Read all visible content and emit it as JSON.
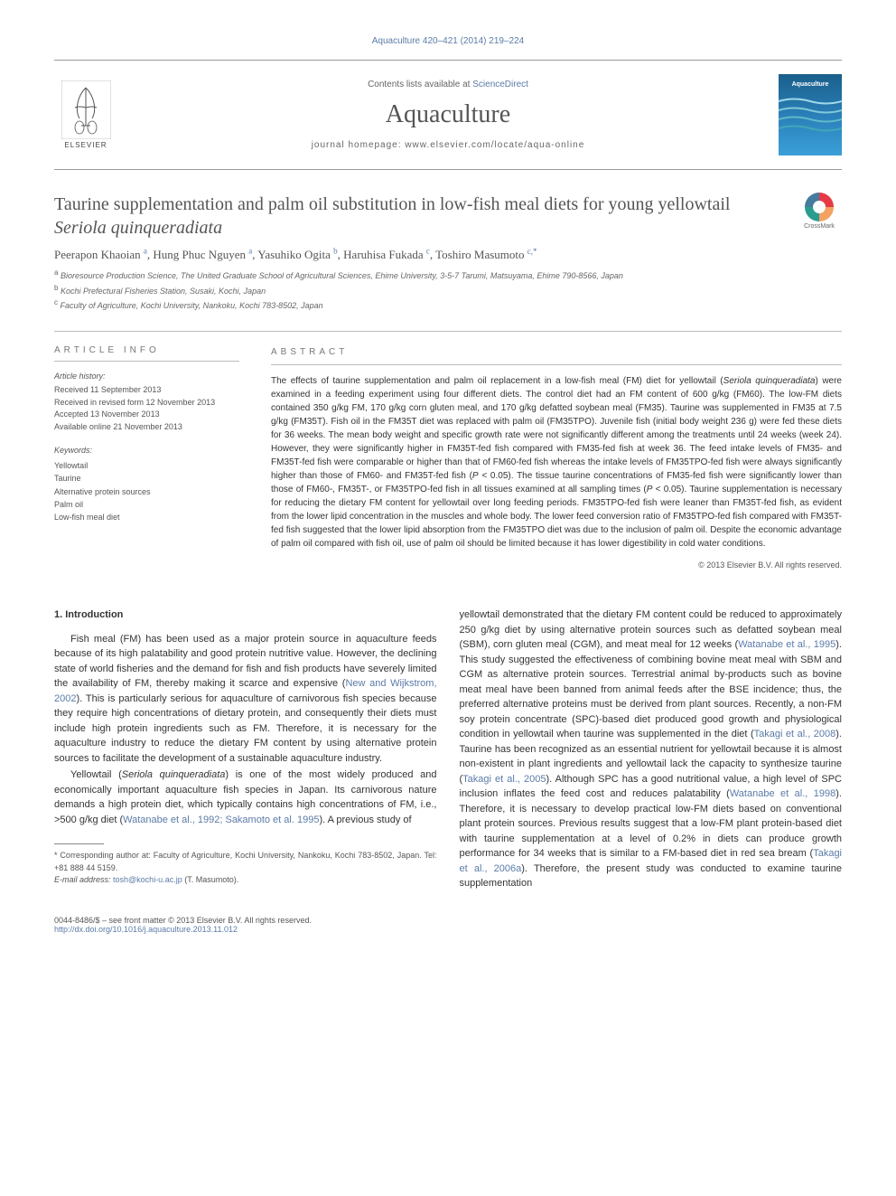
{
  "journal_ref": "Aquaculture 420–421 (2014) 219–224",
  "header": {
    "contents_prefix": "Contents lists available at ",
    "contents_link": "ScienceDirect",
    "journal_name": "Aquaculture",
    "homepage_prefix": "journal homepage: ",
    "homepage": "www.elsevier.com/locate/aqua-online",
    "publisher": "ELSEVIER",
    "cover_title": "Aquaculture"
  },
  "crossmark_label": "CrossMark",
  "title_part1": "Taurine supplementation and palm oil substitution in low-fish meal diets for young yellowtail ",
  "title_ital": "Seriola quinqueradiata",
  "authors_html": "Peerapon Khaoian <sup>a</sup>, Hung Phuc Nguyen <sup>a</sup>, Yasuhiko Ogita <sup>b</sup>, Haruhisa Fukada <sup>c</sup>, Toshiro Masumoto ",
  "author_last_sup": "c,",
  "author_corr": "*",
  "affiliations": {
    "a": "Bioresource Production Science, The United Graduate School of Agricultural Sciences, Ehime University, 3-5-7 Tarumi, Matsuyama, Ehime 790-8566, Japan",
    "b": "Kochi Prefectural Fisheries Station, Susaki, Kochi, Japan",
    "c": "Faculty of Agriculture, Kochi University, Nankoku, Kochi 783-8502, Japan"
  },
  "info": {
    "heading": "ARTICLE INFO",
    "history_label": "Article history:",
    "received": "Received 11 September 2013",
    "revised": "Received in revised form 12 November 2013",
    "accepted": "Accepted 13 November 2013",
    "online": "Available online 21 November 2013",
    "keywords_label": "Keywords:",
    "keywords": [
      "Yellowtail",
      "Taurine",
      "Alternative protein sources",
      "Palm oil",
      "Low-fish meal diet"
    ]
  },
  "abstract": {
    "heading": "ABSTRACT",
    "text_pre": "The effects of taurine supplementation and palm oil replacement in a low-fish meal (FM) diet for yellowtail (",
    "text_ital1": "Seriola quinqueradiata",
    "text_post1": ") were examined in a feeding experiment using four different diets. The control diet had an FM content of 600 g/kg (FM60). The low-FM diets contained 350 g/kg FM, 170 g/kg corn gluten meal, and 170 g/kg defatted soybean meal (FM35). Taurine was supplemented in FM35 at 7.5 g/kg (FM35T). Fish oil in the FM35T diet was replaced with palm oil (FM35TPO). Juvenile fish (initial body weight 236 g) were fed these diets for 36 weeks. The mean body weight and specific growth rate were not significantly different among the treatments until 24 weeks (week 24). However, they were significantly higher in FM35T-fed fish compared with FM35-fed fish at week 36. The feed intake levels of FM35- and FM35T-fed fish were comparable or higher than that of FM60-fed fish whereas the intake levels of FM35TPO-fed fish were always significantly higher than those of FM60- and FM35T-fed fish (",
    "text_ital2": "P",
    "text_post2": " < 0.05). The tissue taurine concentrations of FM35-fed fish were significantly lower than those of FM60-, FM35T-, or FM35TPO-fed fish in all tissues examined at all sampling times (",
    "text_ital3": "P",
    "text_post3": " < 0.05). Taurine supplementation is necessary for reducing the dietary FM content for yellowtail over long feeding periods. FM35TPO-fed fish were leaner than FM35T-fed fish, as evident from the lower lipid concentration in the muscles and whole body. The lower feed conversion ratio of FM35TPO-fed fish compared with FM35T-fed fish suggested that the lower lipid absorption from the FM35TPO diet was due to the inclusion of palm oil. Despite the economic advantage of palm oil compared with fish oil, use of palm oil should be limited because it has lower digestibility in cold water conditions.",
    "copyright": "© 2013 Elsevier B.V. All rights reserved."
  },
  "body": {
    "section_heading": "1. Introduction",
    "col1_p1_pre": "Fish meal (FM) has been used as a major protein source in aquaculture feeds because of its high palatability and good protein nutritive value. However, the declining state of world fisheries and the demand for fish and fish products have severely limited the availability of FM, thereby making it scarce and expensive (",
    "col1_p1_ref1": "New and Wijkstrom, 2002",
    "col1_p1_post": "). This is particularly serious for aquaculture of carnivorous fish species because they require high concentrations of dietary protein, and consequently their diets must include high protein ingredients such as FM. Therefore, it is necessary for the aquaculture industry to reduce the dietary FM content by using alternative protein sources to facilitate the development of a sustainable aquaculture industry.",
    "col1_p2_pre": "Yellowtail (",
    "col1_p2_ital": "Seriola quinqueradiata",
    "col1_p2_mid": ") is one of the most widely produced and economically important aquaculture fish species in Japan. Its carnivorous nature demands a high protein diet, which typically contains high concentrations of FM, i.e., >500 g/kg diet (",
    "col1_p2_ref": "Watanabe et al., 1992; Sakamoto et al. 1995",
    "col1_p2_post": "). A previous study of",
    "col2_p1_pre": "yellowtail demonstrated that the dietary FM content could be reduced to approximately 250 g/kg diet by using alternative protein sources such as defatted soybean meal (SBM), corn gluten meal (CGM), and meat meal for 12 weeks (",
    "col2_p1_ref1": "Watanabe et al., 1995",
    "col2_p1_mid1": "). This study suggested the effectiveness of combining bovine meat meal with SBM and CGM as alternative protein sources. Terrestrial animal by-products such as bovine meat meal have been banned from animal feeds after the BSE incidence; thus, the preferred alternative proteins must be derived from plant sources. Recently, a non-FM soy protein concentrate (SPC)-based diet produced good growth and physiological condition in yellowtail when taurine was supplemented in the diet (",
    "col2_p1_ref2": "Takagi et al., 2008",
    "col2_p1_mid2": "). Taurine has been recognized as an essential nutrient for yellowtail because it is almost non-existent in plant ingredients and yellowtail lack the capacity to synthesize taurine (",
    "col2_p1_ref3": "Takagi et al., 2005",
    "col2_p1_mid3": "). Although SPC has a good nutritional value, a high level of SPC inclusion inflates the feed cost and reduces palatability (",
    "col2_p1_ref4": "Watanabe et al., 1998",
    "col2_p1_mid4": "). Therefore, it is necessary to develop practical low-FM diets based on conventional plant protein sources. Previous results suggest that a low-FM plant protein-based diet with taurine supplementation at a level of 0.2% in diets can produce growth performance for 34 weeks that is similar to a FM-based diet in red sea bream (",
    "col2_p1_ref5": "Takagi et al., 2006a",
    "col2_p1_post": "). Therefore, the present study was conducted to examine taurine supplementation"
  },
  "footnotes": {
    "corr": "* Corresponding author at: Faculty of Agriculture, Kochi University, Nankoku, Kochi 783-8502, Japan. Tel: +81 888 44 5159.",
    "email_label": "E-mail address: ",
    "email": "tosh@kochi-u.ac.jp",
    "email_name": " (T. Masumoto)."
  },
  "footer": {
    "issn": "0044-8486/$ – see front matter © 2013 Elsevier B.V. All rights reserved.",
    "doi": "http://dx.doi.org/10.1016/j.aquaculture.2013.11.012"
  },
  "colors": {
    "link": "#5b7ba8",
    "text": "#333333",
    "heading": "#555555",
    "border": "#bbbbbb"
  }
}
